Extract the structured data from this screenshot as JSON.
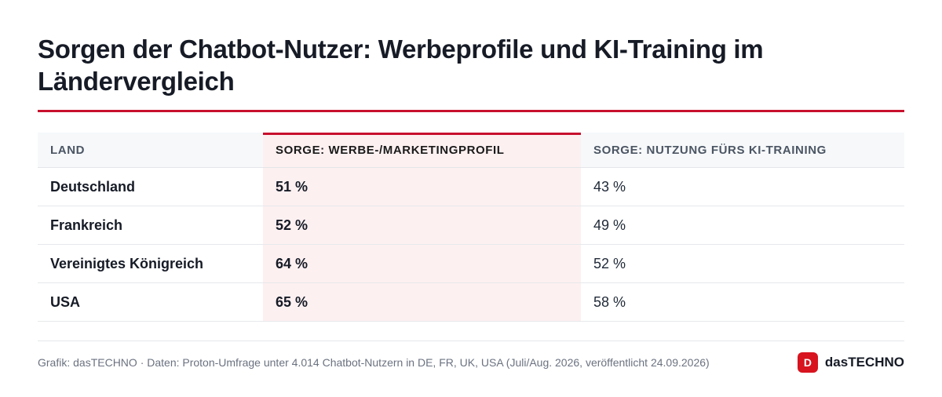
{
  "title": "Sorgen der Chatbot-Nutzer: Werbeprofile und KI-Training im Ländervergleich",
  "chart_data": {
    "type": "table",
    "columns": [
      "Land",
      "Sorge: Werbe-/Marketingprofil",
      "Sorge: Nutzung fürs KI-Training"
    ],
    "rows": [
      [
        "Deutschland",
        "51 %",
        "43 %"
      ],
      [
        "Frankreich",
        "52 %",
        "49 %"
      ],
      [
        "Vereinigtes Königreich",
        "64 %",
        "52 %"
      ],
      [
        "USA",
        "65 %",
        "58 %"
      ]
    ],
    "highlight_column": 1
  },
  "footer": {
    "source": "Grafik: dasTECHNO · Daten: Proton-Umfrage unter 4.014 Chatbot-Nutzern in DE, FR, UK, USA (Juli/Aug. 2026, veröffentlicht 24.09.2026)",
    "brand_icon": "D",
    "brand_name": "dasTECHNO"
  },
  "colors": {
    "accent": "#c8102e",
    "highlight_bg": "#fdf0f1",
    "header_bg": "#f6f8fa"
  }
}
